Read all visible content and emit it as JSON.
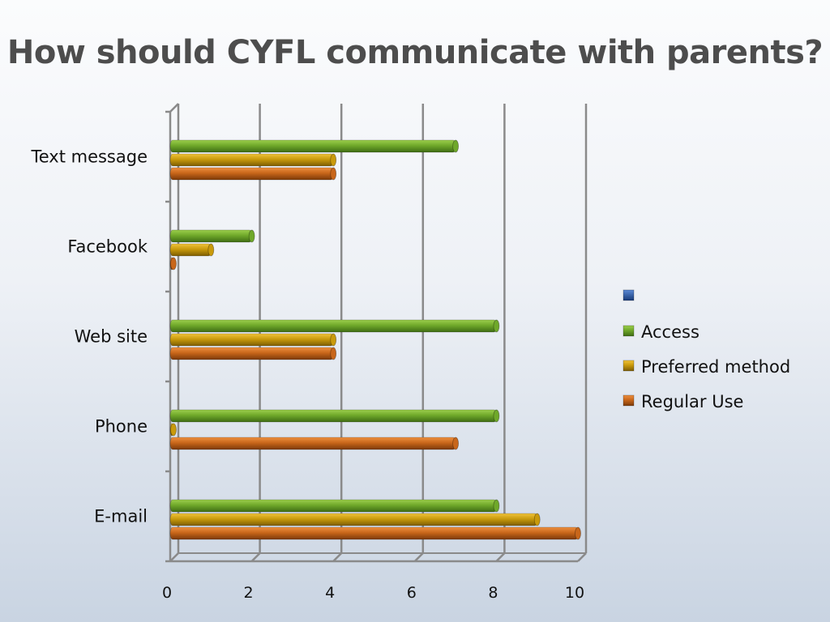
{
  "slide": {
    "title": "How should CYFL communicate with parents?"
  },
  "chart_data": {
    "type": "bar",
    "orientation": "horizontal",
    "categories": [
      "Text message",
      "Facebook",
      "Web site",
      "Phone",
      "E-mail"
    ],
    "series": [
      {
        "name": "",
        "values": [
          0,
          0,
          0,
          0,
          0
        ],
        "color": "#1f4e99"
      },
      {
        "name": "Access",
        "values": [
          7,
          2,
          8,
          8,
          8
        ],
        "color": "#6fa82a"
      },
      {
        "name": "Preferred method",
        "values": [
          4,
          1,
          4,
          0,
          9
        ],
        "color": "#c99a0c"
      },
      {
        "name": "Regular Use",
        "values": [
          4,
          0,
          4,
          7,
          10
        ],
        "color": "#c8661a"
      }
    ],
    "xlim": [
      0,
      10
    ],
    "xticks": [
      0,
      2,
      4,
      6,
      8,
      10
    ],
    "grid": true,
    "legend": "right"
  }
}
